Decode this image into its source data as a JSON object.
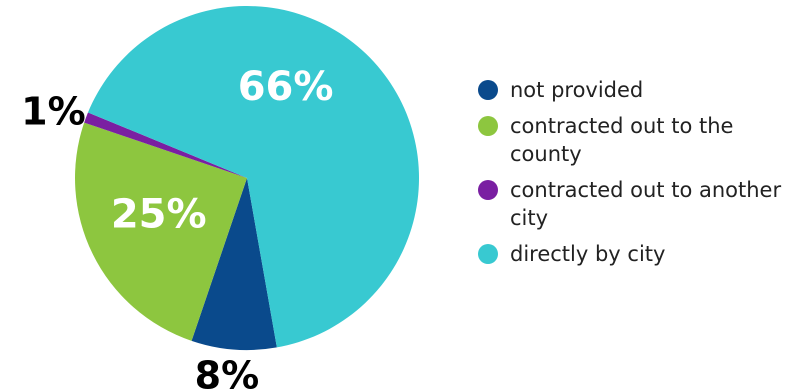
{
  "chart_data": {
    "type": "pie",
    "title": "",
    "slices": [
      {
        "label": "not provided",
        "value": 8,
        "value_label": "8%",
        "color": "#0a4a8c",
        "label_color": "#000000"
      },
      {
        "label": "contracted out to the county",
        "value": 25,
        "value_label": "25%",
        "color": "#8dc63f",
        "label_color": "#ffffff"
      },
      {
        "label": "contracted out to another city",
        "value": 1,
        "value_label": "1%",
        "color": "#7a1fa2",
        "label_color": "#000000"
      },
      {
        "label": "directly by city",
        "value": 66,
        "value_label": "66%",
        "color": "#38c9d1",
        "label_color": "#ffffff"
      }
    ],
    "legend": {
      "placement": "right",
      "items": [
        {
          "label": "not provided",
          "color": "#0a4a8c"
        },
        {
          "label": "contracted out to the county",
          "color": "#8dc63f"
        },
        {
          "label": "contracted out to another city",
          "color": "#7a1fa2"
        },
        {
          "label": "directly by city",
          "color": "#38c9d1"
        }
      ]
    }
  }
}
